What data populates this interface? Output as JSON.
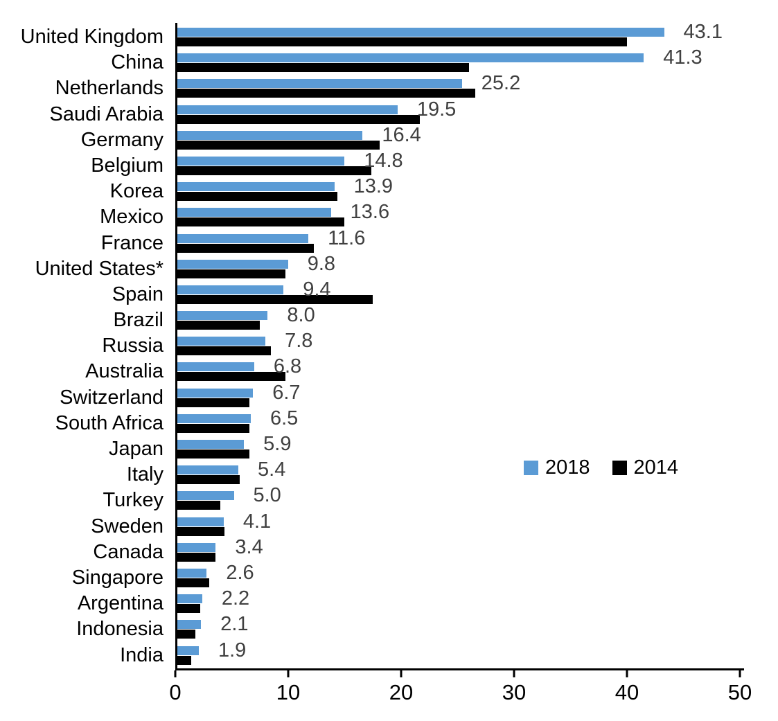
{
  "chart_data": {
    "type": "bar",
    "orientation": "horizontal",
    "title": "",
    "xlabel": "",
    "ylabel": "",
    "xlim": [
      0,
      50
    ],
    "x_ticks": [
      0,
      10,
      20,
      30,
      40,
      50
    ],
    "x_tick_labels": [
      "0",
      "10",
      "20",
      "30",
      "40",
      "50"
    ],
    "grid": false,
    "legend_position": "center-right",
    "categories": [
      "United Kingdom",
      "China",
      "Netherlands",
      "Saudi Arabia",
      "Germany",
      "Belgium",
      "Korea",
      "Mexico",
      "France",
      "United States*",
      "Spain",
      "Brazil",
      "Russia",
      "Australia",
      "Switzerland",
      "South Africa",
      "Japan",
      "Italy",
      "Turkey",
      "Sweden",
      "Canada",
      "Singapore",
      "Argentina",
      "Indonesia",
      "India"
    ],
    "series": [
      {
        "name": "2018",
        "color": "#5B9BD5",
        "values": [
          43.1,
          41.3,
          25.2,
          19.5,
          16.4,
          14.8,
          13.9,
          13.6,
          11.6,
          9.8,
          9.4,
          8.0,
          7.8,
          6.8,
          6.7,
          6.5,
          5.9,
          5.4,
          5.0,
          4.1,
          3.4,
          2.6,
          2.2,
          2.1,
          1.9
        ]
      },
      {
        "name": "2014",
        "color": "#000000",
        "values": [
          39.8,
          25.8,
          26.4,
          21.5,
          17.9,
          17.2,
          14.2,
          14.8,
          12.1,
          9.6,
          17.3,
          7.3,
          8.3,
          9.6,
          6.4,
          6.4,
          6.4,
          5.5,
          3.8,
          4.2,
          3.4,
          2.8,
          2.0,
          1.6,
          1.2
        ]
      }
    ],
    "data_labels": [
      "43.1",
      "41.3",
      "25.2",
      "19.5",
      "16.4",
      "14.8",
      "13.9",
      "13.6",
      "11.6",
      "9.8",
      "9.4",
      "8.0",
      "7.8",
      "6.8",
      "6.7",
      "6.5",
      "5.9",
      "5.4",
      "5.0",
      "4.1",
      "3.4",
      "2.6",
      "2.2",
      "2.1",
      "1.9"
    ],
    "data_label_color": "#404040"
  },
  "legend": {
    "items": [
      {
        "label": "2018",
        "color": "#5B9BD5"
      },
      {
        "label": "2014",
        "color": "#000000"
      }
    ]
  }
}
